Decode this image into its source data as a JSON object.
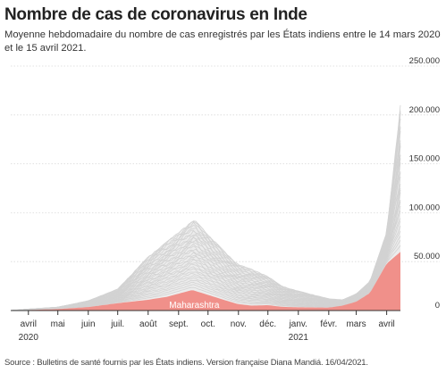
{
  "chart_data": {
    "type": "area",
    "title": "Nombre de cas de coronavirus en Inde",
    "subtitle": "Moyenne hebdomadaire du nombre de cas enregistrés par les États indiens entre le 14 mars 2020 et le 15 avril 2021.",
    "source": "Source : Bulletins de santé fournis par les États indiens. Version française Diana Mandiá. 16/04/2021.",
    "x_range": [
      "2020-03-14",
      "2021-04-15"
    ],
    "x_ticks": [
      {
        "date": "2020-04-01",
        "label": "avril",
        "sub": "2020"
      },
      {
        "date": "2020-05-01",
        "label": "mai",
        "sub": ""
      },
      {
        "date": "2020-06-01",
        "label": "juin",
        "sub": ""
      },
      {
        "date": "2020-07-01",
        "label": "juil.",
        "sub": ""
      },
      {
        "date": "2020-08-01",
        "label": "août",
        "sub": ""
      },
      {
        "date": "2020-09-01",
        "label": "sept.",
        "sub": ""
      },
      {
        "date": "2020-10-01",
        "label": "oct.",
        "sub": ""
      },
      {
        "date": "2020-11-01",
        "label": "nov.",
        "sub": ""
      },
      {
        "date": "2020-12-01",
        "label": "déc.",
        "sub": ""
      },
      {
        "date": "2021-01-01",
        "label": "janv.",
        "sub": "2021"
      },
      {
        "date": "2021-02-01",
        "label": "févr.",
        "sub": ""
      },
      {
        "date": "2021-03-01",
        "label": "mars",
        "sub": ""
      },
      {
        "date": "2021-04-01",
        "label": "avril",
        "sub": ""
      }
    ],
    "y_ticks": [
      {
        "value": 0,
        "label": "0"
      },
      {
        "value": 50000,
        "label": "50.000"
      },
      {
        "value": 100000,
        "label": "100.000"
      },
      {
        "value": 150000,
        "label": "150.000"
      },
      {
        "value": 200000,
        "label": "200.000"
      },
      {
        "value": 250000,
        "label": "250.000"
      }
    ],
    "ylim": [
      0,
      250000
    ],
    "grid": true,
    "colors": {
      "highlight": "#f0908a",
      "others": "#d2d2d2",
      "grid": "#d9d9d9",
      "axis": "#333333"
    },
    "series": [
      {
        "name": "Maharashtra",
        "highlight": true,
        "points": [
          [
            "2020-03-14",
            0
          ],
          [
            "2020-04-01",
            500
          ],
          [
            "2020-05-01",
            1500
          ],
          [
            "2020-06-01",
            3500
          ],
          [
            "2020-07-01",
            7500
          ],
          [
            "2020-08-01",
            11000
          ],
          [
            "2020-08-20",
            14000
          ],
          [
            "2020-09-15",
            21000
          ],
          [
            "2020-10-01",
            16000
          ],
          [
            "2020-10-20",
            10000
          ],
          [
            "2020-11-01",
            6500
          ],
          [
            "2020-11-15",
            5000
          ],
          [
            "2020-12-01",
            5500
          ],
          [
            "2020-12-15",
            3800
          ],
          [
            "2021-01-01",
            3300
          ],
          [
            "2021-02-01",
            3000
          ],
          [
            "2021-02-15",
            5000
          ],
          [
            "2021-03-01",
            9000
          ],
          [
            "2021-03-15",
            18000
          ],
          [
            "2021-04-01",
            48000
          ],
          [
            "2021-04-15",
            60000
          ]
        ]
      },
      {
        "name": "",
        "highlight": false,
        "points": [
          [
            "2020-03-14",
            0
          ],
          [
            "2020-04-01",
            1500
          ],
          [
            "2020-05-01",
            3500
          ],
          [
            "2020-06-01",
            10000
          ],
          [
            "2020-07-01",
            22000
          ],
          [
            "2020-08-01",
            55000
          ],
          [
            "2020-09-17",
            93000
          ],
          [
            "2020-10-01",
            78000
          ],
          [
            "2020-10-20",
            58000
          ],
          [
            "2020-11-01",
            47000
          ],
          [
            "2020-11-15",
            42000
          ],
          [
            "2020-12-01",
            35000
          ],
          [
            "2020-12-15",
            25000
          ],
          [
            "2021-01-01",
            20000
          ],
          [
            "2021-02-01",
            12000
          ],
          [
            "2021-02-15",
            11000
          ],
          [
            "2021-03-01",
            17000
          ],
          [
            "2021-03-15",
            30000
          ],
          [
            "2021-04-01",
            80000
          ],
          [
            "2021-04-15",
            210000
          ]
        ]
      }
    ]
  }
}
